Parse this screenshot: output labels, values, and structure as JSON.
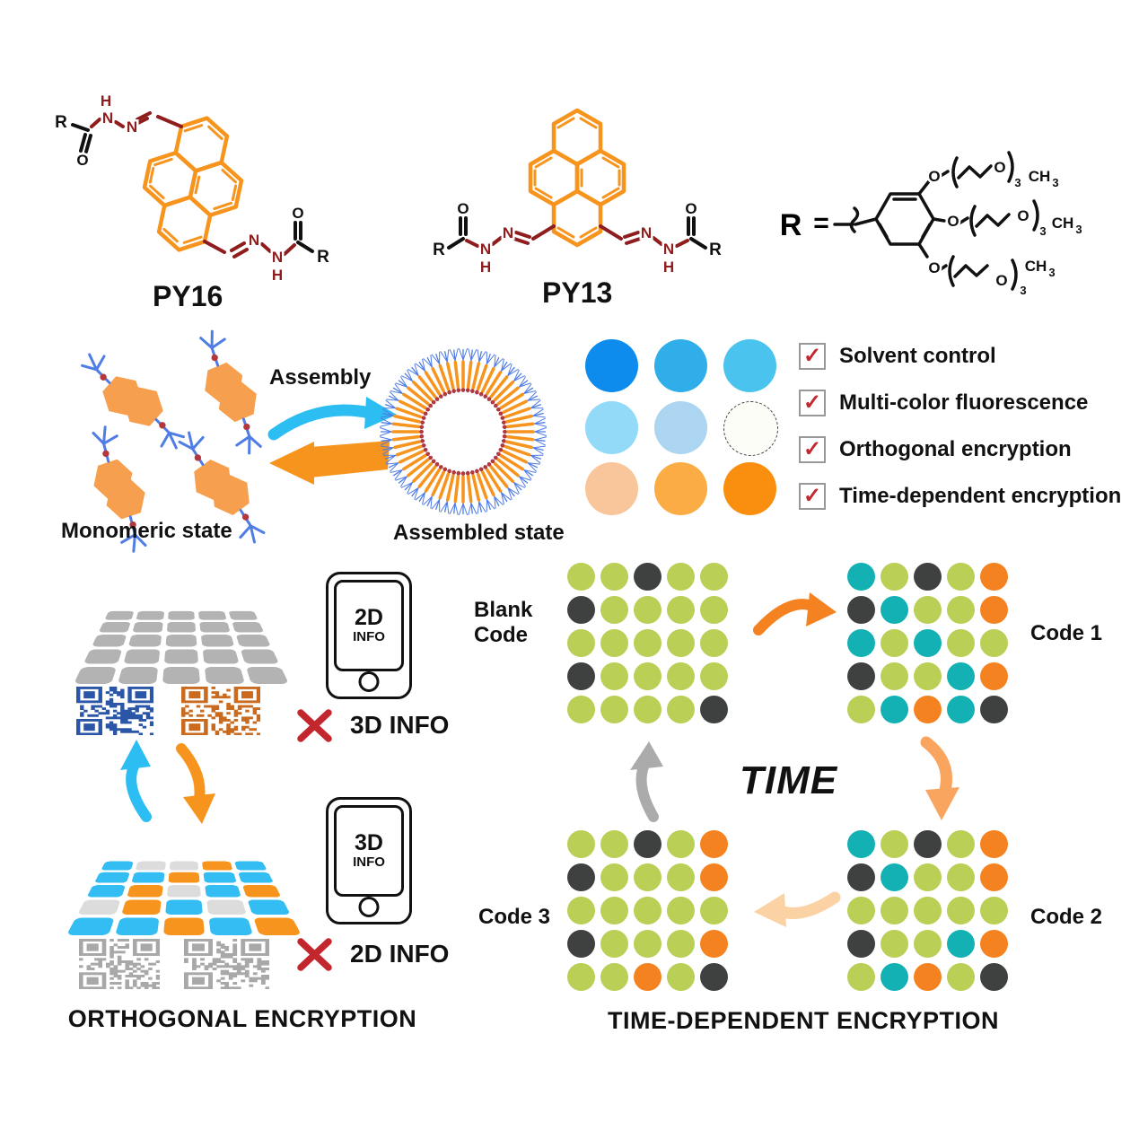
{
  "palette": {
    "pyrene": "#F7941D",
    "maroon": "#8F1D1D",
    "monomer": "#F6A04F",
    "armblue": "#4F7CE5",
    "reddot": "#B2383E",
    "cyan": "#2CBEF2",
    "orange": "#F7941D",
    "graytile": "#B3B3B3",
    "tilecyan": "#33BDF2",
    "tileorange": "#F7941D",
    "tilegray": "#DCDCDC",
    "qrblue": "#2B56A8",
    "qrorange": "#C96A1E",
    "qrgray": "#A8A8A8",
    "dotgreen": "#B9CF55",
    "dotdark": "#3F4040",
    "dotteal": "#14B1B4",
    "dotorange": "#F58220",
    "arrowmid": "#F9A55F",
    "arrowlight": "#FBD2A4",
    "arrowgray": "#ABABAB",
    "checkred": "#C1272D",
    "boxborder": "#999999"
  },
  "molecules": {
    "py16_label": "PY16",
    "py13_label": "PY13",
    "r_prefix": "R",
    "equals": "=",
    "atoms": {
      "N": "N",
      "H": "H",
      "O": "O",
      "R": "R",
      "CH": "CH",
      "three": "3"
    }
  },
  "assembly": {
    "arrow_label": "Assembly",
    "monomeric_label": "Monomeric state",
    "assembled_label": "Assembled state"
  },
  "color_grid": {
    "colors": [
      [
        "#0D8CEE",
        "#2FAEE9",
        "#4AC3EE"
      ],
      [
        "#92DAF8",
        "#ABD5F1",
        "#FDFDF8"
      ],
      [
        "#F9C69B",
        "#FBAC44",
        "#F98E0F"
      ]
    ],
    "dashed_cell": [
      1,
      2
    ]
  },
  "checklist": {
    "check_glyph": "✓",
    "items": [
      "Solvent control",
      "Multi-color fluorescence",
      "Orthogonal encryption",
      "Time-dependent encryption"
    ]
  },
  "orthogonal": {
    "title": "ORTHOGONAL ENCRYPTION",
    "phone_top": {
      "line1": "2D",
      "line2": "INFO"
    },
    "phone_bottom": {
      "line1": "3D",
      "line2": "INFO"
    },
    "cross_top": "3D INFO",
    "cross_bottom": "2D INFO",
    "colored_grid": [
      [
        "c",
        "g",
        "g",
        "o",
        "c"
      ],
      [
        "c",
        "c",
        "o",
        "c",
        "c"
      ],
      [
        "c",
        "o",
        "g",
        "c",
        "o"
      ],
      [
        "g",
        "o",
        "c",
        "g",
        "c"
      ],
      [
        "c",
        "c",
        "o",
        "c",
        "o"
      ]
    ]
  },
  "time_encryption": {
    "title": "TIME-DEPENDENT ENCRYPTION",
    "time_label": "TIME",
    "blank_line1": "Blank",
    "blank_line2": "Code",
    "code1_label": "Code 1",
    "code2_label": "Code 2",
    "code3_label": "Code 3",
    "dot_colors": {
      "g": "dotgreen",
      "d": "dotdark",
      "t": "dotteal",
      "o": "dotorange"
    },
    "grids": {
      "blank": [
        [
          "g",
          "g",
          "d",
          "g",
          "g"
        ],
        [
          "d",
          "g",
          "g",
          "g",
          "g"
        ],
        [
          "g",
          "g",
          "g",
          "g",
          "g"
        ],
        [
          "d",
          "g",
          "g",
          "g",
          "g"
        ],
        [
          "g",
          "g",
          "g",
          "g",
          "d"
        ]
      ],
      "code1": [
        [
          "t",
          "g",
          "d",
          "g",
          "o"
        ],
        [
          "d",
          "t",
          "g",
          "g",
          "o"
        ],
        [
          "t",
          "g",
          "t",
          "g",
          "g"
        ],
        [
          "d",
          "g",
          "g",
          "t",
          "o"
        ],
        [
          "g",
          "t",
          "o",
          "t",
          "d"
        ]
      ],
      "code2": [
        [
          "t",
          "g",
          "d",
          "g",
          "o"
        ],
        [
          "d",
          "t",
          "g",
          "g",
          "o"
        ],
        [
          "g",
          "g",
          "g",
          "g",
          "g"
        ],
        [
          "d",
          "g",
          "g",
          "t",
          "o"
        ],
        [
          "g",
          "t",
          "o",
          "g",
          "d"
        ]
      ],
      "code3": [
        [
          "g",
          "g",
          "d",
          "g",
          "o"
        ],
        [
          "d",
          "g",
          "g",
          "g",
          "o"
        ],
        [
          "g",
          "g",
          "g",
          "g",
          "g"
        ],
        [
          "d",
          "g",
          "g",
          "g",
          "o"
        ],
        [
          "g",
          "g",
          "o",
          "g",
          "d"
        ]
      ]
    }
  }
}
